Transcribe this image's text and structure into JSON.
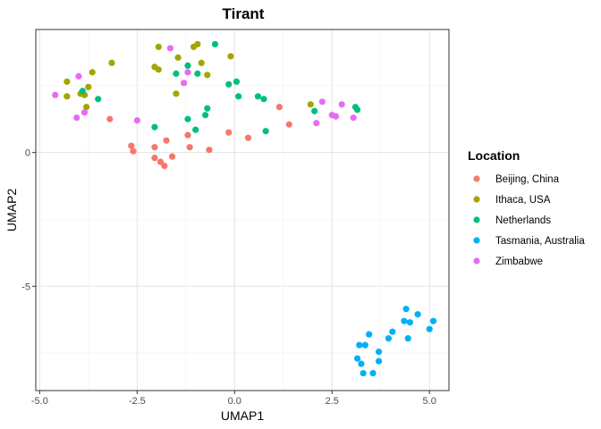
{
  "chart_data": {
    "type": "scatter",
    "title": "Tirant",
    "xlabel": "UMAP1",
    "ylabel": "UMAP2",
    "xlim": [
      -5.1,
      5.5
    ],
    "ylim": [
      -8.9,
      4.6
    ],
    "xticks": [
      -5.0,
      -2.5,
      0.0,
      2.5,
      5.0
    ],
    "xtick_labels": [
      "-5.0",
      "-2.5",
      "0.0",
      "2.5",
      "5.0"
    ],
    "yticks": [
      -5,
      0
    ],
    "ytick_labels": [
      "-5",
      "0"
    ],
    "grid": true,
    "legend_title": "Location",
    "legend_position": "right",
    "series": [
      {
        "name": "Beijing, China",
        "color": "#F8766D",
        "points": [
          [
            -3.2,
            1.25
          ],
          [
            -2.65,
            0.25
          ],
          [
            -2.6,
            0.05
          ],
          [
            -2.05,
            0.2
          ],
          [
            -2.05,
            -0.2
          ],
          [
            -1.9,
            -0.35
          ],
          [
            -1.8,
            -0.5
          ],
          [
            -1.75,
            0.45
          ],
          [
            -1.6,
            -0.15
          ],
          [
            -1.2,
            0.65
          ],
          [
            -1.15,
            0.2
          ],
          [
            -0.65,
            0.1
          ],
          [
            -0.15,
            0.75
          ],
          [
            0.35,
            0.55
          ],
          [
            1.15,
            1.7
          ],
          [
            1.4,
            1.05
          ]
        ]
      },
      {
        "name": "Ithaca, USA",
        "color": "#A3A500",
        "points": [
          [
            -4.3,
            2.65
          ],
          [
            -4.3,
            2.1
          ],
          [
            -3.95,
            2.2
          ],
          [
            -3.85,
            2.15
          ],
          [
            -3.8,
            1.7
          ],
          [
            -3.75,
            2.45
          ],
          [
            -3.65,
            3.0
          ],
          [
            -3.15,
            3.35
          ],
          [
            -2.05,
            3.2
          ],
          [
            -1.95,
            3.95
          ],
          [
            -1.95,
            3.1
          ],
          [
            -1.5,
            2.2
          ],
          [
            -1.45,
            3.55
          ],
          [
            -1.05,
            3.95
          ],
          [
            -0.95,
            4.05
          ],
          [
            -0.85,
            3.35
          ],
          [
            -0.7,
            2.9
          ],
          [
            -0.1,
            3.6
          ],
          [
            1.95,
            1.8
          ]
        ]
      },
      {
        "name": "Netherlands",
        "color": "#00BF7D",
        "points": [
          [
            -3.9,
            2.3
          ],
          [
            -3.5,
            2.0
          ],
          [
            -2.05,
            0.95
          ],
          [
            -1.5,
            2.95
          ],
          [
            -1.2,
            3.25
          ],
          [
            -1.2,
            1.25
          ],
          [
            -1.0,
            0.85
          ],
          [
            -0.95,
            2.95
          ],
          [
            -0.75,
            1.4
          ],
          [
            -0.7,
            1.65
          ],
          [
            -0.5,
            4.05
          ],
          [
            -0.15,
            2.55
          ],
          [
            0.05,
            2.65
          ],
          [
            0.1,
            2.1
          ],
          [
            0.6,
            2.1
          ],
          [
            0.75,
            2.0
          ],
          [
            0.8,
            0.8
          ],
          [
            2.05,
            1.55
          ],
          [
            3.1,
            1.7
          ],
          [
            3.15,
            1.6
          ]
        ]
      },
      {
        "name": "Tasmania, Australia",
        "color": "#00B0F6",
        "points": [
          [
            3.15,
            -7.7
          ],
          [
            3.2,
            -7.2
          ],
          [
            3.25,
            -7.9
          ],
          [
            3.3,
            -8.25
          ],
          [
            3.35,
            -7.2
          ],
          [
            3.45,
            -6.8
          ],
          [
            3.55,
            -8.25
          ],
          [
            3.7,
            -7.8
          ],
          [
            3.7,
            -7.45
          ],
          [
            3.95,
            -6.95
          ],
          [
            4.05,
            -6.7
          ],
          [
            4.35,
            -6.3
          ],
          [
            4.4,
            -5.85
          ],
          [
            4.45,
            -6.95
          ],
          [
            4.5,
            -6.35
          ],
          [
            4.7,
            -6.05
          ],
          [
            5.0,
            -6.6
          ],
          [
            5.1,
            -6.3
          ]
        ]
      },
      {
        "name": "Zimbabwe",
        "color": "#E76BF3",
        "points": [
          [
            -4.6,
            2.15
          ],
          [
            -4.05,
            1.3
          ],
          [
            -4.0,
            2.85
          ],
          [
            -3.85,
            1.5
          ],
          [
            -2.5,
            1.2
          ],
          [
            -1.65,
            3.9
          ],
          [
            -1.3,
            2.6
          ],
          [
            -1.2,
            3.0
          ],
          [
            2.1,
            1.1
          ],
          [
            2.25,
            1.9
          ],
          [
            2.5,
            1.4
          ],
          [
            2.6,
            1.35
          ],
          [
            2.75,
            1.8
          ],
          [
            3.05,
            1.3
          ]
        ]
      }
    ]
  }
}
